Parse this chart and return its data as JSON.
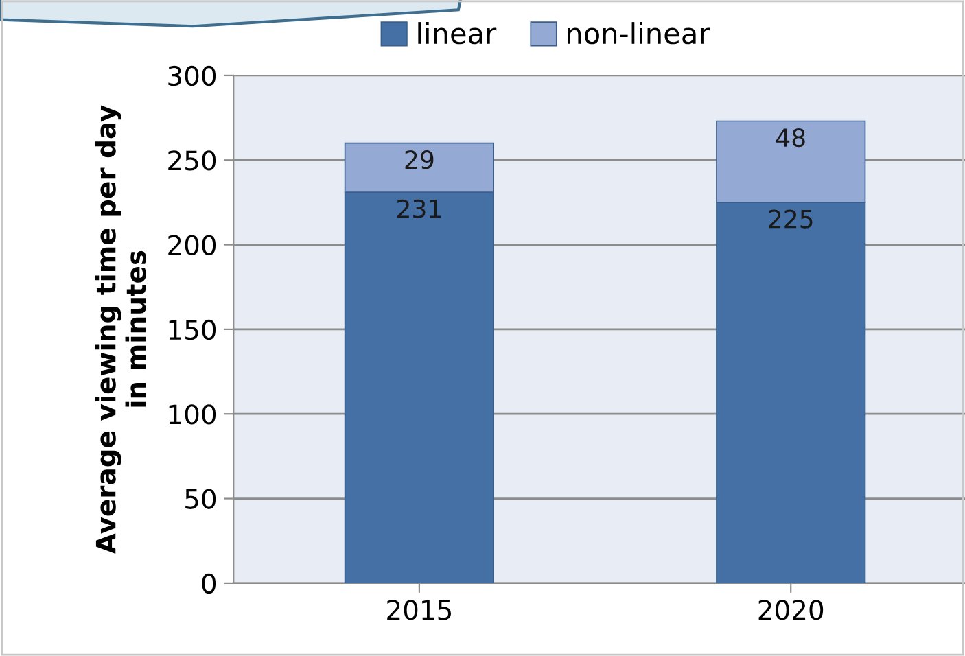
{
  "chart_data": {
    "type": "bar",
    "stacked": true,
    "ylabel": "Average viewing time per day\nin minutes",
    "categories": [
      "2015",
      "2020"
    ],
    "series": [
      {
        "name": "linear",
        "color": "#4470a5",
        "values": [
          231,
          225
        ]
      },
      {
        "name": "non-linear",
        "color": "#94a9d3",
        "values": [
          29,
          48
        ]
      }
    ],
    "ylim": [
      0,
      300
    ],
    "yticks": [
      0,
      50,
      100,
      150,
      200,
      250,
      300
    ],
    "grid": "y",
    "legend": "top",
    "data_labels": true
  }
}
